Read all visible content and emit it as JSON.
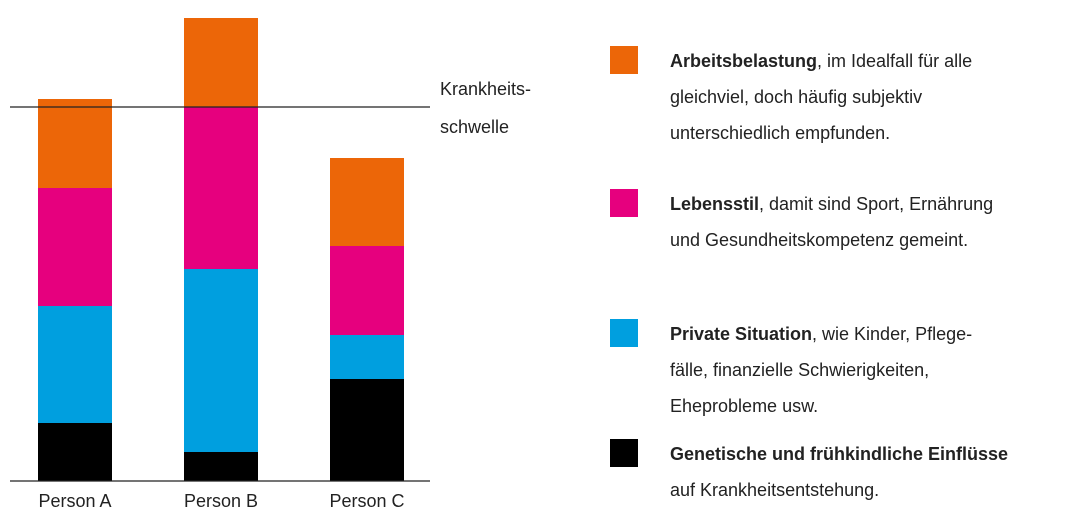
{
  "chart_data": {
    "type": "stacked_bar",
    "categories": [
      "Person A",
      "Person B",
      "Person C"
    ],
    "series": [
      {
        "name": "Genetische und frühkindliche Einflüsse",
        "color": "#000000",
        "values": [
          58,
          29,
          102
        ],
        "description_lines": [
          "auf Krankheitsentstehung."
        ]
      },
      {
        "name": "Private Situation",
        "color": "#009fdf",
        "values": [
          117,
          183,
          44
        ],
        "description_lines": [
          ", wie Kinder, Pflege-",
          "fälle, finanzielle Schwierigkeiten,",
          "Eheprobleme usw."
        ]
      },
      {
        "name": "Lebensstil",
        "color": "#e6007e",
        "values": [
          118,
          162,
          89
        ],
        "description_lines": [
          ", damit sind Sport, Ernährung",
          "und Gesundheitskompetenz gemeint."
        ]
      },
      {
        "name": "Arbeitsbelastung",
        "color": "#ec6608",
        "values": [
          89,
          89,
          88
        ],
        "description_lines": [
          ", im Idealfall für alle",
          "gleichviel, doch häufig subjektiv",
          "unterschiedlich empfunden."
        ]
      }
    ],
    "threshold": {
      "value": 374,
      "label_lines": [
        "Krankheits-",
        "schwelle"
      ]
    },
    "ylim": [
      0,
      463
    ]
  }
}
